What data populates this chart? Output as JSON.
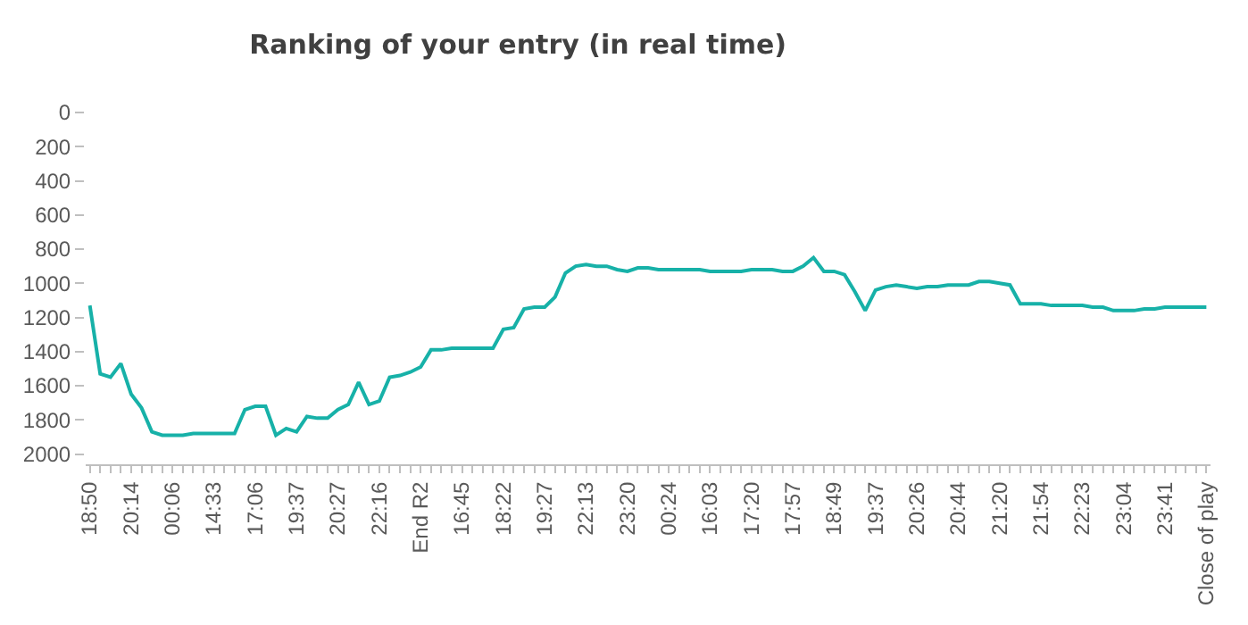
{
  "chart_data": {
    "type": "line",
    "title": "Ranking of your entry (in real time)",
    "categories": [
      "18:50",
      null,
      null,
      null,
      "20:14",
      null,
      null,
      null,
      "00:06",
      null,
      null,
      null,
      "14:33",
      null,
      null,
      null,
      "17:06",
      null,
      null,
      null,
      "19:37",
      null,
      null,
      null,
      "20:27",
      null,
      null,
      null,
      "22:16",
      null,
      null,
      null,
      "End R2",
      null,
      null,
      null,
      "16:45",
      null,
      null,
      null,
      "18:22",
      null,
      null,
      null,
      "19:27",
      null,
      null,
      null,
      "22:13",
      null,
      null,
      null,
      "23:20",
      null,
      null,
      null,
      "00:24",
      null,
      null,
      null,
      "16:03",
      null,
      null,
      null,
      "17:20",
      null,
      null,
      null,
      "17:57",
      null,
      null,
      null,
      "18:49",
      null,
      null,
      null,
      "19:37",
      null,
      null,
      null,
      "20:26",
      null,
      null,
      null,
      "20:44",
      null,
      null,
      null,
      "21:20",
      null,
      null,
      null,
      "21:54",
      null,
      null,
      null,
      "22:23",
      null,
      null,
      null,
      "23:04",
      null,
      null,
      null,
      "23:41",
      null,
      null,
      null,
      "Close of play"
    ],
    "series": [
      {
        "color": "#17b1a8",
        "values": [
          1130,
          1530,
          1550,
          1470,
          1650,
          1730,
          1870,
          1890,
          1890,
          1890,
          1880,
          1880,
          1880,
          1880,
          1880,
          1740,
          1720,
          1720,
          1890,
          1850,
          1870,
          1780,
          1790,
          1790,
          1740,
          1710,
          1580,
          1710,
          1690,
          1550,
          1540,
          1520,
          1490,
          1390,
          1390,
          1380,
          1380,
          1380,
          1380,
          1380,
          1270,
          1260,
          1150,
          1140,
          1140,
          1080,
          940,
          900,
          890,
          900,
          900,
          920,
          930,
          910,
          910,
          920,
          920,
          920,
          920,
          920,
          930,
          930,
          930,
          930,
          920,
          920,
          920,
          930,
          930,
          900,
          850,
          930,
          930,
          950,
          1050,
          1160,
          1040,
          1020,
          1010,
          1020,
          1030,
          1020,
          1020,
          1010,
          1010,
          1010,
          990,
          990,
          1000,
          1010,
          1120,
          1120,
          1120,
          1130,
          1130,
          1130,
          1130,
          1140,
          1140,
          1160,
          1160,
          1160,
          1150,
          1150,
          1140,
          1140,
          1140,
          1140,
          1140
        ]
      }
    ],
    "ylim": [
      2060,
      0
    ],
    "yticks": [
      0,
      200,
      400,
      600,
      800,
      1000,
      1200,
      1400,
      1600,
      1800,
      2000
    ],
    "marker": "none",
    "line_style": "solid"
  }
}
